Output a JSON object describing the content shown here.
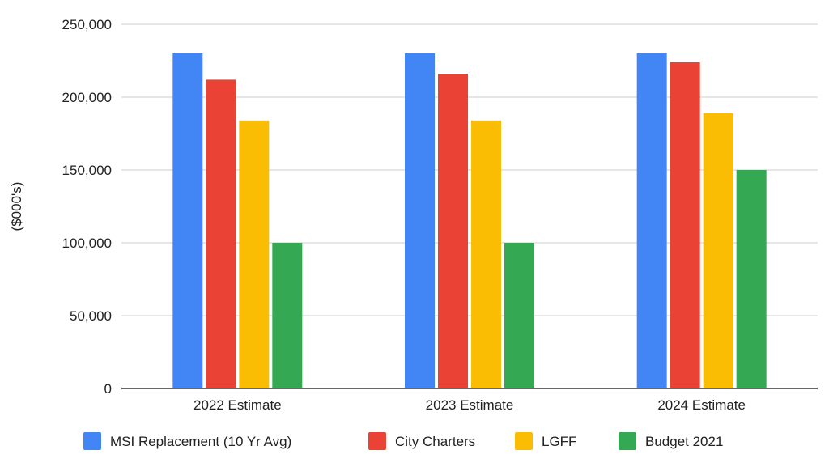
{
  "chart_data": {
    "type": "bar",
    "title": "",
    "xlabel": "",
    "ylabel": "($000's)",
    "ylim": [
      0,
      250000
    ],
    "yticks": [
      0,
      50000,
      100000,
      150000,
      200000,
      250000
    ],
    "ytick_labels": [
      "0",
      "50,000",
      "100,000",
      "150,000",
      "200,000",
      "250,000"
    ],
    "grid": true,
    "legend_position": "bottom",
    "categories": [
      "2022 Estimate",
      "2023 Estimate",
      "2024 Estimate"
    ],
    "series": [
      {
        "name": "MSI Replacement (10 Yr Avg)",
        "color": "#4285f4",
        "values": [
          230000,
          230000,
          230000
        ]
      },
      {
        "name": "City Charters",
        "color": "#ea4335",
        "values": [
          212000,
          216000,
          224000
        ]
      },
      {
        "name": "LGFF",
        "color": "#fbbc04",
        "values": [
          184000,
          184000,
          189000
        ]
      },
      {
        "name": "Budget 2021",
        "color": "#34a853",
        "values": [
          100000,
          100000,
          150000
        ]
      }
    ]
  }
}
